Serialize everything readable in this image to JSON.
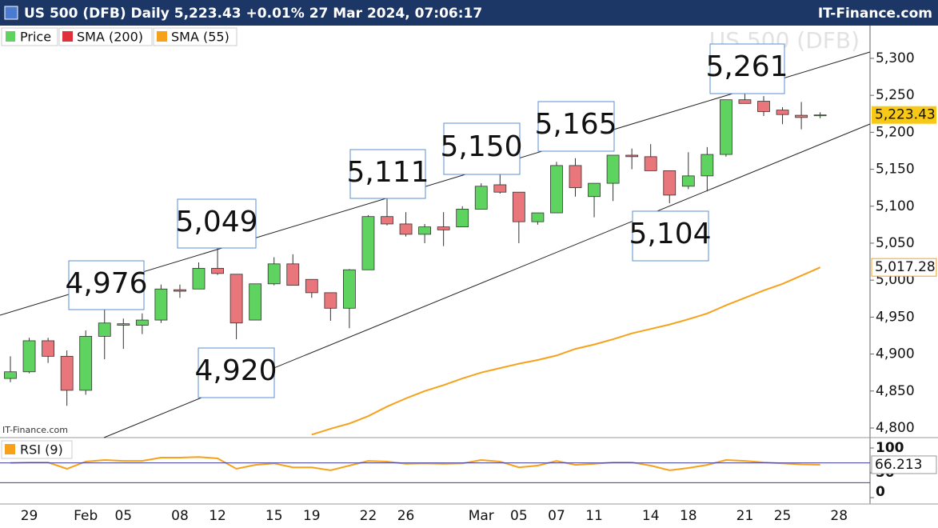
{
  "chart_data": {
    "type": "candlestick",
    "title": "US 500 (DFB) Daily 5,223.43 +0.01% 27 Mar 2024, 07:06:17",
    "brand": "IT-Finance.com",
    "watermark": "US 500 (DFB)",
    "source": "IT-Finance.com",
    "categories": [
      null,
      "29",
      null,
      null,
      "Feb",
      null,
      "05",
      null,
      null,
      "08",
      null,
      "12",
      null,
      null,
      "15",
      null,
      "19",
      null,
      null,
      "22",
      null,
      "26",
      null,
      null,
      null,
      "Mar",
      null,
      "05",
      null,
      "07",
      null,
      "11",
      null,
      null,
      "14",
      null,
      "18",
      null,
      null,
      "21",
      null,
      "25",
      null,
      null,
      "28"
    ],
    "price": {
      "name": "Price",
      "up_color": "#5fd35f",
      "down_color": "#e8767a",
      "open": [
        4867,
        4876,
        4918,
        4897,
        4851,
        4924,
        4939,
        4939,
        4946,
        4987,
        4988,
        5016,
        5008,
        4946,
        4995,
        5022,
        5001,
        4983,
        4962,
        5014,
        5086,
        5076,
        5062,
        5072,
        5072,
        5096,
        5129,
        5119,
        5079,
        5091,
        5155,
        5113,
        5131,
        5169,
        5167,
        5148,
        5127,
        5141,
        5170,
        5244,
        5242,
        5230,
        5223,
        5223,
        null
      ],
      "high": [
        4897,
        4922,
        4922,
        4905,
        4932,
        4968,
        4948,
        4955,
        4994,
        4994,
        5024,
        5049,
        5008,
        4995,
        5031,
        5035,
        5001,
        4983,
        5015,
        5088,
        5111,
        5092,
        5076,
        5092,
        5100,
        5131,
        5150,
        5119,
        5091,
        5160,
        5165,
        5131,
        5169,
        5178,
        5184,
        5148,
        5173,
        5180,
        5244,
        5261,
        5249,
        5234,
        5241,
        5227,
        null
      ],
      "low": [
        4862,
        4874,
        4888,
        4830,
        4845,
        4893,
        4907,
        4927,
        4942,
        4976,
        4988,
        5007,
        4920,
        4946,
        4993,
        4993,
        4976,
        4945,
        4935,
        5014,
        5074,
        5059,
        5050,
        5046,
        5072,
        5096,
        5117,
        5050,
        5075,
        5091,
        5113,
        5085,
        5107,
        5150,
        5148,
        5104,
        5123,
        5120,
        5167,
        5239,
        5222,
        5211,
        5204,
        5219,
        null
      ],
      "close": [
        4876,
        4918,
        4897,
        4851,
        4924,
        4942,
        4941,
        4946,
        4988,
        4985,
        5016,
        5009,
        4942,
        4995,
        5022,
        4993,
        4983,
        4962,
        5014,
        5086,
        5076,
        5062,
        5072,
        5068,
        5096,
        5127,
        5119,
        5079,
        5091,
        5155,
        5125,
        5131,
        5169,
        5167,
        5148,
        5115,
        5141,
        5170,
        5244,
        5239,
        5228,
        5224,
        5220,
        5223.43,
        null
      ],
      "last_label": "5,223.43",
      "last_color": "#f7c815"
    },
    "sma200": {
      "name": "SMA (200)",
      "color": "#e0303a"
    },
    "sma55": {
      "name": "SMA (55)",
      "color": "#f7a11a",
      "values": [
        null,
        null,
        null,
        null,
        null,
        null,
        null,
        null,
        null,
        null,
        null,
        null,
        null,
        null,
        null,
        null,
        4791,
        4799,
        4806,
        4816,
        4829,
        4840,
        4850,
        4858,
        4867,
        4875,
        4881,
        4887,
        4892,
        4898,
        4907,
        4913,
        4920,
        4928,
        4934,
        4940,
        4947,
        4955,
        4966,
        4976,
        4986,
        4995,
        5006,
        5017.28,
        null
      ],
      "last_label": "5,017.28"
    },
    "ylim": [
      4787,
      5314
    ],
    "yticks": [
      {
        "value": 4800,
        "label": "4,800"
      },
      {
        "value": 4850,
        "label": "4,850"
      },
      {
        "value": 4900,
        "label": "4,900"
      },
      {
        "value": 4950,
        "label": "4,950"
      },
      {
        "value": 5000,
        "label": "5,000"
      },
      {
        "value": 5050,
        "label": "5,050"
      },
      {
        "value": 5100,
        "label": "5,100"
      },
      {
        "value": 5150,
        "label": "5,150"
      },
      {
        "value": 5200,
        "label": "5,200"
      },
      {
        "value": 5250,
        "label": "5,250"
      },
      {
        "value": 5300,
        "label": "5,300"
      }
    ],
    "annotations": [
      "4,976",
      "5,049",
      "5,111",
      "5,150",
      "5,165",
      "5,261",
      "5,104",
      "4,920"
    ],
    "rsi": {
      "name": "RSI (9)",
      "color": "#f7a11a",
      "level_color": "#3c3ca0",
      "values": [
        70,
        71,
        71,
        58,
        72.6,
        75.8,
        74,
        74,
        80.6,
        80.6,
        82,
        79,
        58,
        66,
        69,
        61,
        61,
        55,
        64.5,
        74,
        72.6,
        68,
        69,
        68,
        69,
        75.8,
        72.6,
        61,
        64.5,
        74,
        66,
        68,
        71,
        71,
        64.5,
        55,
        59.7,
        66,
        75.8,
        74,
        71,
        69,
        67,
        66.213,
        null
      ],
      "last_label": "66.213",
      "ylim": [
        0,
        100
      ],
      "yticks": [
        0,
        50,
        100
      ],
      "levels": [
        30,
        70
      ]
    }
  }
}
